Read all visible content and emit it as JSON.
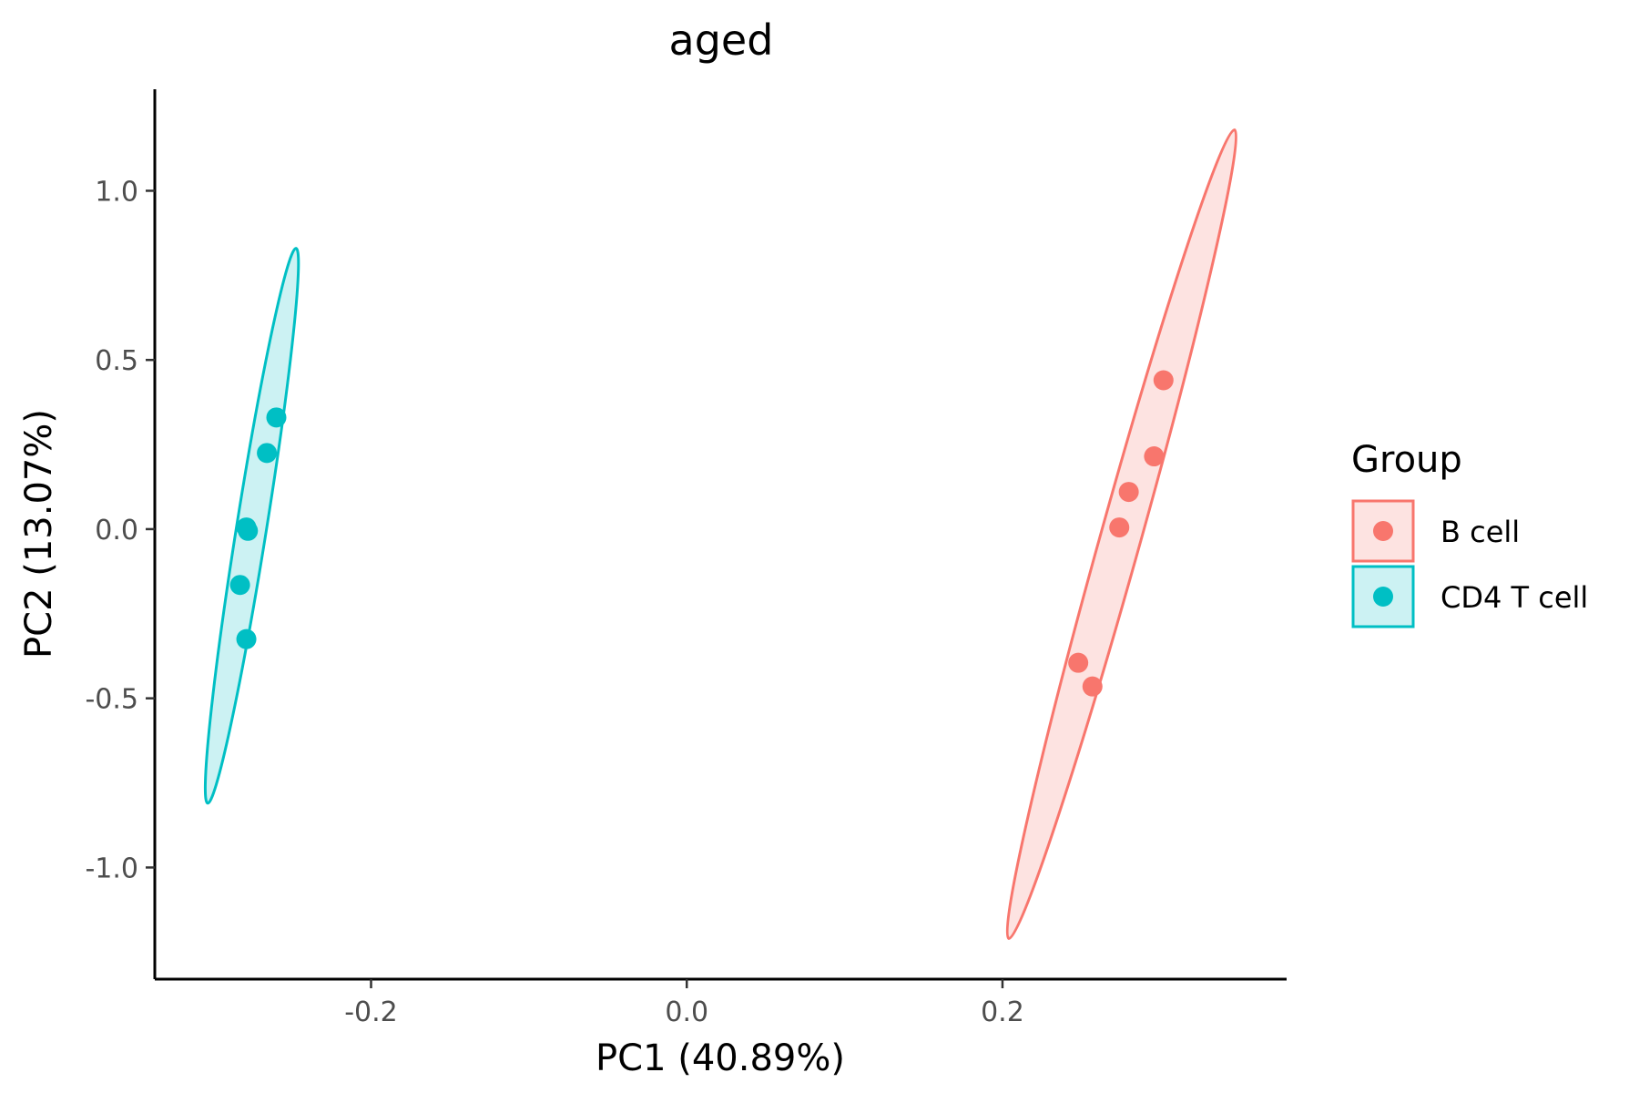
{
  "chart_data": {
    "type": "scatter",
    "title": "aged",
    "xlabel": "PC1 (40.89%)",
    "ylabel": "PC2 (13.07%)",
    "xlim": [
      -0.337,
      0.38
    ],
    "ylim": [
      -1.33,
      1.3
    ],
    "xticks": [
      {
        "value": -0.2,
        "label": "-0.2"
      },
      {
        "value": 0.0,
        "label": "0.0"
      },
      {
        "value": 0.2,
        "label": "0.2"
      }
    ],
    "yticks": [
      {
        "value": 1.0,
        "label": "1.0"
      },
      {
        "value": 0.5,
        "label": "0.5"
      },
      {
        "value": 0.0,
        "label": "0.0"
      },
      {
        "value": -0.5,
        "label": "-0.5"
      },
      {
        "value": -1.0,
        "label": "-1.0"
      }
    ],
    "grid": false,
    "legend": {
      "title": "Group",
      "position": "right"
    },
    "series": [
      {
        "name": "B cell",
        "color": "#F8766D",
        "fill": "#FDE3E1",
        "points": [
          {
            "x": 0.302,
            "y": 0.44
          },
          {
            "x": 0.296,
            "y": 0.215
          },
          {
            "x": 0.28,
            "y": 0.11
          },
          {
            "x": 0.274,
            "y": 0.005
          },
          {
            "x": 0.248,
            "y": -0.395
          },
          {
            "x": 0.257,
            "y": -0.465
          }
        ],
        "ellipse": {
          "cx": 0.2755,
          "cy": -0.015,
          "tips": [
            [
              0.347,
              1.18
            ],
            [
              0.204,
              -1.21
            ]
          ],
          "half_width": 0.0128
        }
      },
      {
        "name": "CD4 T cell",
        "color": "#00BFC4",
        "fill": "#CCF2F3",
        "points": [
          {
            "x": -0.26,
            "y": 0.33
          },
          {
            "x": -0.266,
            "y": 0.225
          },
          {
            "x": -0.279,
            "y": 0.005
          },
          {
            "x": -0.278,
            "y": -0.005
          },
          {
            "x": -0.283,
            "y": -0.165
          },
          {
            "x": -0.279,
            "y": -0.325
          }
        ],
        "ellipse": {
          "cx": -0.2755,
          "cy": 0.01,
          "tips": [
            [
              -0.246,
              0.83
            ],
            [
              -0.302,
              -0.81
            ]
          ],
          "half_width": 0.0095
        }
      }
    ]
  }
}
